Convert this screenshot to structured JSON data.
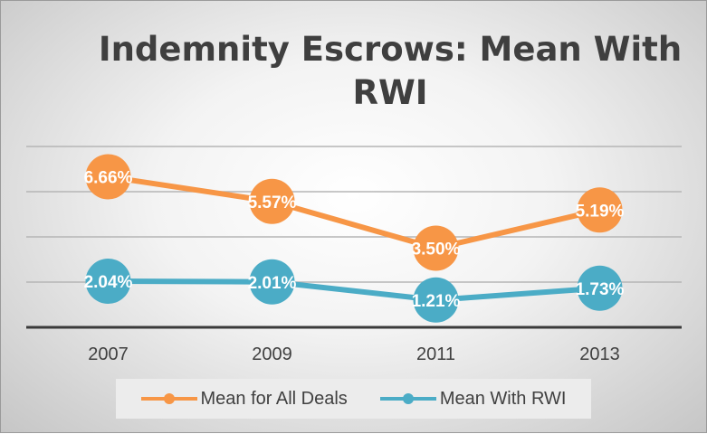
{
  "chart_data": {
    "type": "line",
    "title": "Indemnity Escrows: Mean With RWI",
    "categories": [
      "2007",
      "2009",
      "2011",
      "2013"
    ],
    "series": [
      {
        "name": "Mean for All Deals",
        "values": [
          6.66,
          5.57,
          3.5,
          5.19
        ],
        "labels": [
          "6.66%",
          "5.57%",
          "3.50%",
          "5.19%"
        ],
        "color": "#f79646"
      },
      {
        "name": "Mean With RWI",
        "values": [
          2.04,
          2.01,
          1.21,
          1.73
        ],
        "labels": [
          "2.04%",
          "2.01%",
          "1.21%",
          "1.73%"
        ],
        "color": "#4bacc6"
      }
    ],
    "ylim": [
      0,
      8
    ],
    "gridlines": [
      0,
      2,
      4,
      6,
      8
    ],
    "xlabel": "",
    "ylabel": "",
    "legend_position": "bottom"
  }
}
